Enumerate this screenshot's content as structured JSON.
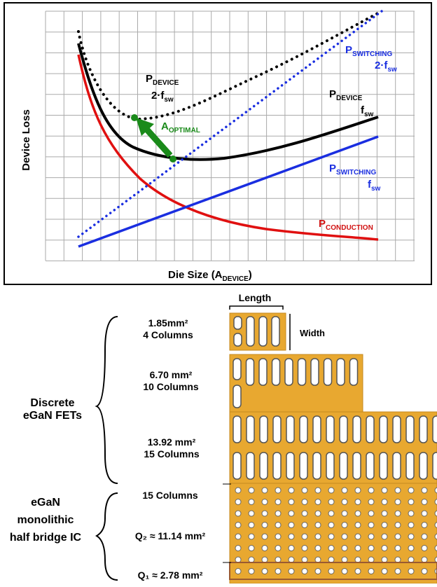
{
  "chart": {
    "y_axis_label": "Device Loss",
    "x_axis_label": {
      "main": "Die Size (A",
      "sub": "DEVICE",
      "end": ")"
    },
    "p_device_2fsw": {
      "main": "P",
      "sub": "DEVICE",
      "line2": "2·f",
      "line2_sub": "sw"
    },
    "p_switching_2fsw": {
      "main": "P",
      "sub": "SWITCHING",
      "line2": "2·f",
      "line2_sub": "sw"
    },
    "p_device_fsw": {
      "main": "P",
      "sub": "DEVICE",
      "line2": "f",
      "line2_sub": "sw"
    },
    "a_optimal": {
      "main": "A",
      "sub": "OPTIMAL"
    },
    "p_switching_fsw": {
      "main": "P",
      "sub": "SWITCHING",
      "line2": "f",
      "line2_sub": "sw"
    },
    "p_conduction": {
      "main": "P",
      "sub": "CONDUCTION"
    }
  },
  "diagram": {
    "length_label": "Length",
    "width_label": "Width",
    "groups": [
      {
        "lines": [
          "Discrete",
          "eGaN FETs"
        ]
      },
      {
        "lines": [
          "eGaN",
          "monolithic",
          "half bridge IC"
        ]
      }
    ],
    "devices": [
      {
        "area": "1.85mm²",
        "columns": "4 Columns"
      },
      {
        "area": "6.70 mm²",
        "columns": "10 Columns"
      },
      {
        "area": "13.92 mm²",
        "columns": "15 Columns"
      }
    ],
    "ic": {
      "columns": "15 Columns",
      "q2": "Q₂ ≈ 11.14 mm²",
      "q1": "Q₁ ≈ 2.78 mm²"
    }
  }
}
